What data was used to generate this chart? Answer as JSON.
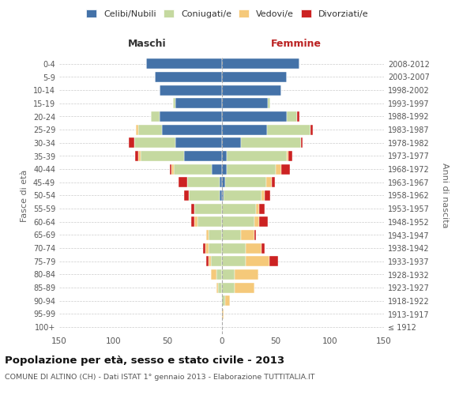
{
  "age_groups": [
    "0-4",
    "5-9",
    "10-14",
    "15-19",
    "20-24",
    "25-29",
    "30-34",
    "35-39",
    "40-44",
    "45-49",
    "50-54",
    "55-59",
    "60-64",
    "65-69",
    "70-74",
    "75-79",
    "80-84",
    "85-89",
    "90-94",
    "95-99",
    "100+"
  ],
  "birth_years": [
    "2008-2012",
    "2003-2007",
    "1998-2002",
    "1993-1997",
    "1988-1992",
    "1983-1987",
    "1978-1982",
    "1973-1977",
    "1968-1972",
    "1963-1967",
    "1958-1962",
    "1953-1957",
    "1948-1952",
    "1943-1947",
    "1938-1942",
    "1933-1937",
    "1928-1932",
    "1923-1927",
    "1918-1922",
    "1913-1917",
    "≤ 1912"
  ],
  "maschi_celibi": [
    70,
    62,
    57,
    43,
    57,
    55,
    43,
    35,
    9,
    2,
    2,
    0,
    0,
    0,
    0,
    0,
    0,
    0,
    0,
    0,
    0
  ],
  "maschi_coniugati": [
    0,
    0,
    0,
    2,
    8,
    22,
    38,
    40,
    35,
    30,
    28,
    25,
    22,
    12,
    12,
    10,
    5,
    3,
    0,
    0,
    0
  ],
  "maschi_vedovi": [
    0,
    0,
    0,
    0,
    0,
    2,
    0,
    2,
    2,
    0,
    0,
    0,
    3,
    2,
    3,
    2,
    5,
    2,
    0,
    0,
    0
  ],
  "maschi_divorziati": [
    0,
    0,
    0,
    0,
    0,
    0,
    5,
    3,
    2,
    8,
    5,
    3,
    3,
    0,
    2,
    2,
    0,
    0,
    0,
    0,
    0
  ],
  "femmine_nubili": [
    72,
    60,
    55,
    43,
    60,
    42,
    18,
    5,
    5,
    3,
    2,
    0,
    0,
    0,
    0,
    0,
    0,
    0,
    0,
    0,
    0
  ],
  "femmine_coniugate": [
    0,
    0,
    0,
    2,
    10,
    40,
    55,
    55,
    45,
    38,
    35,
    32,
    30,
    18,
    22,
    22,
    12,
    12,
    3,
    0,
    0
  ],
  "femmine_vedove": [
    0,
    0,
    0,
    0,
    0,
    0,
    0,
    2,
    5,
    5,
    3,
    3,
    5,
    12,
    15,
    22,
    22,
    18,
    5,
    2,
    0
  ],
  "femmine_divorziate": [
    0,
    0,
    0,
    0,
    2,
    2,
    2,
    3,
    8,
    3,
    5,
    5,
    8,
    2,
    3,
    8,
    0,
    0,
    0,
    0,
    0
  ],
  "colors": {
    "celibi": "#4472a8",
    "coniugati": "#c5d9a0",
    "vedovi": "#f5c97a",
    "divorziati": "#cc2222"
  },
  "xlim": 150,
  "title": "Popolazione per età, sesso e stato civile - 2013",
  "subtitle": "COMUNE DI ALTINO (CH) - Dati ISTAT 1° gennaio 2013 - Elaborazione TUTTITALIA.IT",
  "ylabel_left": "Fasce di età",
  "ylabel_right": "Anni di nascita",
  "label_maschi": "Maschi",
  "label_femmine": "Femmine",
  "legend_labels": [
    "Celibi/Nubili",
    "Coniugati/e",
    "Vedovi/e",
    "Divorziati/e"
  ],
  "bg_color": "#ffffff",
  "grid_color": "#cccccc"
}
